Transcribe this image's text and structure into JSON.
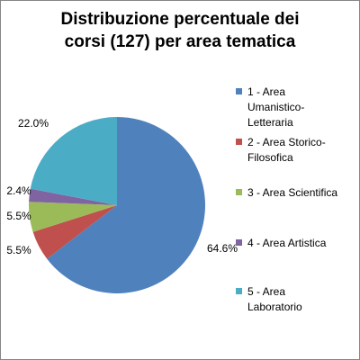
{
  "title_lines": [
    "Distribuzione percentuale dei",
    "corsi (127) per area tematica"
  ],
  "chart_data": {
    "type": "pie",
    "title": "Distribuzione percentuale dei corsi (127) per area tematica",
    "categories": [
      "1 - Area Umanistico-Letteraria",
      "2 - Area Storico-Filosofica",
      "3 - Area Scientifica",
      "4 - Area Artistica",
      "5 - Area Laboratorio"
    ],
    "values": [
      64.6,
      5.5,
      5.5,
      2.4,
      22.0
    ],
    "value_labels": [
      "64.6%",
      "5.5%",
      "5.5%",
      "2.4%",
      "22.0%"
    ],
    "colors": [
      "#4F81BD",
      "#C0504D",
      "#9BBB59",
      "#8064A2",
      "#4BACC6"
    ],
    "legend_position": "right"
  },
  "legend": {
    "items": [
      {
        "lines": [
          "1 - Area",
          "Umanistico-",
          "Letteraria"
        ]
      },
      {
        "lines": [
          "2 - Area Storico-",
          "Filosofica"
        ]
      },
      {
        "lines": [
          "3 - Area Scientifica"
        ]
      },
      {
        "lines": [
          "4 - Area Artistica"
        ]
      },
      {
        "lines": [
          "5 - Area",
          "Laboratorio"
        ]
      }
    ]
  }
}
